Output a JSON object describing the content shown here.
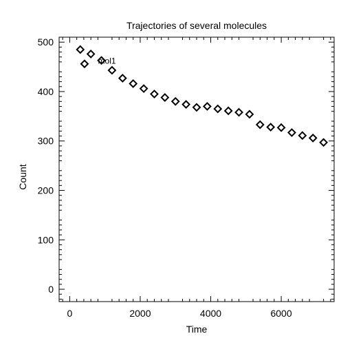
{
  "chart_data": {
    "type": "scatter",
    "title": "Trajectories of several molecules",
    "xlabel": "Time",
    "ylabel": "Count",
    "xlim": [
      -300,
      7500
    ],
    "ylim": [
      -25,
      510
    ],
    "x_ticks": [
      0,
      2000,
      4000,
      6000
    ],
    "y_ticks": [
      0,
      100,
      200,
      300,
      400,
      500
    ],
    "grid": false,
    "marker": "diamond-open",
    "series": [
      {
        "name": "mol1",
        "label_at_index": 3,
        "x": [
          300,
          420,
          600,
          900,
          1200,
          1500,
          1800,
          2100,
          2400,
          2700,
          3000,
          3300,
          3600,
          3900,
          4200,
          4500,
          4800,
          5100,
          5400,
          5700,
          6000,
          6300,
          6600,
          6900,
          7200
        ],
        "y": [
          485,
          456,
          476,
          463,
          443,
          427,
          416,
          406,
          395,
          388,
          380,
          374,
          368,
          370,
          365,
          361,
          358,
          354,
          333,
          328,
          327,
          317,
          311,
          306,
          297
        ]
      }
    ]
  },
  "colors": {
    "axis": "#000000",
    "marker_stroke": "#000000",
    "background": "#ffffff"
  }
}
